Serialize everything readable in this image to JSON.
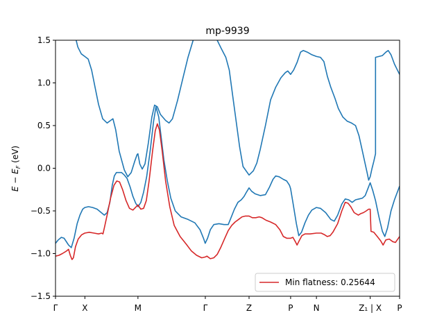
{
  "chart_data": {
    "type": "line",
    "title": "mp-9939",
    "ylabel": "E − E_F (eV)",
    "ylabel_main": "E − E",
    "ylabel_sub": "F",
    "ylabel_unit": " (eV)",
    "ylim": [
      -1.5,
      1.5
    ],
    "yticks": [
      -1.5,
      -1.0,
      -0.5,
      0.0,
      0.5,
      1.0,
      1.5
    ],
    "ytick_labels": [
      "−1.5",
      "−1.0",
      "−0.5",
      "0.0",
      "0.5",
      "1.0",
      "1.5"
    ],
    "xlim": [
      0,
      1
    ],
    "kpoints": [
      {
        "label": "Γ",
        "x": 0.0
      },
      {
        "label": "X",
        "x": 0.0854
      },
      {
        "label": "M",
        "x": 0.2396
      },
      {
        "label": "Γ",
        "x": 0.4354
      },
      {
        "label": "Z",
        "x": 0.5625
      },
      {
        "label": "P",
        "x": 0.6833
      },
      {
        "label": "N",
        "x": 0.7583
      },
      {
        "label": "Z₁ | X",
        "x": 0.9146
      },
      {
        "label": "P",
        "x": 1.0
      }
    ],
    "legend": {
      "label": "Min flatness: 0.25644",
      "position": "lower-right"
    },
    "colors": {
      "band": "#1f77b4",
      "flat_band": "#d62728"
    },
    "series": [
      {
        "color": "#1f77b4",
        "points": [
          [
            0.0,
            -0.88
          ],
          [
            0.008,
            -0.84
          ],
          [
            0.017,
            -0.81
          ],
          [
            0.025,
            -0.82
          ],
          [
            0.033,
            -0.87
          ],
          [
            0.038,
            -0.9
          ],
          [
            0.046,
            -0.93
          ],
          [
            0.054,
            -0.82
          ],
          [
            0.063,
            -0.65
          ],
          [
            0.071,
            -0.55
          ],
          [
            0.079,
            -0.48
          ],
          [
            0.085,
            -0.46
          ],
          [
            0.096,
            -0.45
          ],
          [
            0.108,
            -0.46
          ],
          [
            0.121,
            -0.48
          ],
          [
            0.133,
            -0.52
          ],
          [
            0.142,
            -0.55
          ],
          [
            0.15,
            -0.52
          ],
          [
            0.158,
            -0.4
          ],
          [
            0.165,
            -0.2
          ],
          [
            0.171,
            -0.09
          ],
          [
            0.177,
            -0.05
          ],
          [
            0.185,
            -0.05
          ],
          [
            0.192,
            -0.05
          ],
          [
            0.2,
            -0.08
          ],
          [
            0.208,
            -0.12
          ],
          [
            0.217,
            -0.22
          ],
          [
            0.225,
            -0.33
          ],
          [
            0.233,
            -0.41
          ],
          [
            0.24,
            -0.45
          ],
          [
            0.248,
            -0.4
          ],
          [
            0.256,
            -0.28
          ],
          [
            0.265,
            -0.1
          ],
          [
            0.275,
            0.2
          ],
          [
            0.285,
            0.55
          ],
          [
            0.292,
            0.72
          ],
          [
            0.3,
            0.6
          ],
          [
            0.306,
            0.4
          ],
          [
            0.315,
            0.1
          ],
          [
            0.325,
            -0.15
          ],
          [
            0.335,
            -0.35
          ],
          [
            0.348,
            -0.5
          ],
          [
            0.365,
            -0.57
          ],
          [
            0.385,
            -0.6
          ],
          [
            0.405,
            -0.64
          ],
          [
            0.42,
            -0.72
          ],
          [
            0.43,
            -0.82
          ],
          [
            0.435,
            -0.88
          ],
          [
            0.442,
            -0.82
          ],
          [
            0.45,
            -0.72
          ],
          [
            0.46,
            -0.66
          ],
          [
            0.475,
            -0.65
          ],
          [
            0.49,
            -0.66
          ],
          [
            0.502,
            -0.66
          ],
          [
            0.51,
            -0.58
          ],
          [
            0.52,
            -0.48
          ],
          [
            0.53,
            -0.4
          ],
          [
            0.54,
            -0.37
          ],
          [
            0.548,
            -0.33
          ],
          [
            0.555,
            -0.28
          ],
          [
            0.5625,
            -0.23
          ],
          [
            0.57,
            -0.27
          ],
          [
            0.58,
            -0.3
          ],
          [
            0.595,
            -0.32
          ],
          [
            0.61,
            -0.31
          ],
          [
            0.622,
            -0.22
          ],
          [
            0.632,
            -0.13
          ],
          [
            0.64,
            -0.09
          ],
          [
            0.65,
            -0.1
          ],
          [
            0.662,
            -0.13
          ],
          [
            0.672,
            -0.15
          ],
          [
            0.68,
            -0.2
          ],
          [
            0.6833,
            -0.24
          ],
          [
            0.69,
            -0.4
          ],
          [
            0.7,
            -0.65
          ],
          [
            0.707,
            -0.79
          ],
          [
            0.715,
            -0.75
          ],
          [
            0.725,
            -0.64
          ],
          [
            0.735,
            -0.55
          ],
          [
            0.745,
            -0.49
          ],
          [
            0.7583,
            -0.46
          ],
          [
            0.77,
            -0.47
          ],
          [
            0.785,
            -0.52
          ],
          [
            0.8,
            -0.6
          ],
          [
            0.81,
            -0.62
          ],
          [
            0.82,
            -0.55
          ],
          [
            0.832,
            -0.42
          ],
          [
            0.842,
            -0.36
          ],
          [
            0.852,
            -0.37
          ],
          [
            0.862,
            -0.4
          ],
          [
            0.872,
            -0.37
          ],
          [
            0.882,
            -0.36
          ],
          [
            0.892,
            -0.35
          ],
          [
            0.9,
            -0.32
          ],
          [
            0.9146,
            -0.17
          ],
          [
            0.922,
            -0.26
          ],
          [
            0.93,
            -0.38
          ],
          [
            0.94,
            -0.57
          ],
          [
            0.95,
            -0.74
          ],
          [
            0.957,
            -0.8
          ],
          [
            0.965,
            -0.7
          ],
          [
            0.975,
            -0.5
          ],
          [
            0.985,
            -0.37
          ],
          [
            1.0,
            -0.21
          ]
        ]
      },
      {
        "color": "#1f77b4",
        "points": [
          [
            0.06,
            1.5
          ],
          [
            0.065,
            1.42
          ],
          [
            0.075,
            1.34
          ],
          [
            0.085,
            1.31
          ],
          [
            0.095,
            1.28
          ],
          [
            0.105,
            1.15
          ],
          [
            0.115,
            0.95
          ],
          [
            0.125,
            0.75
          ],
          [
            0.137,
            0.58
          ],
          [
            0.15,
            0.53
          ],
          [
            0.16,
            0.56
          ],
          [
            0.167,
            0.58
          ],
          [
            0.175,
            0.45
          ],
          [
            0.185,
            0.2
          ],
          [
            0.2,
            -0.02
          ],
          [
            0.21,
            -0.1
          ],
          [
            0.22,
            -0.05
          ],
          [
            0.23,
            0.08
          ],
          [
            0.237,
            0.16
          ],
          [
            0.2396,
            0.17
          ],
          [
            0.245,
            0.05
          ],
          [
            0.252,
            -0.01
          ],
          [
            0.26,
            0.05
          ],
          [
            0.27,
            0.3
          ],
          [
            0.28,
            0.6
          ],
          [
            0.288,
            0.74
          ],
          [
            0.296,
            0.72
          ],
          [
            0.305,
            0.63
          ],
          [
            0.32,
            0.56
          ],
          [
            0.33,
            0.53
          ],
          [
            0.34,
            0.58
          ],
          [
            0.355,
            0.8
          ],
          [
            0.37,
            1.05
          ],
          [
            0.385,
            1.3
          ],
          [
            0.4,
            1.5
          ]
        ]
      },
      {
        "color": "#1f77b4",
        "points": [
          [
            0.47,
            1.5
          ],
          [
            0.482,
            1.4
          ],
          [
            0.495,
            1.3
          ],
          [
            0.505,
            1.15
          ],
          [
            0.515,
            0.85
          ],
          [
            0.525,
            0.55
          ],
          [
            0.535,
            0.25
          ],
          [
            0.545,
            0.02
          ],
          [
            0.5625,
            -0.08
          ],
          [
            0.575,
            -0.03
          ],
          [
            0.585,
            0.06
          ],
          [
            0.595,
            0.22
          ],
          [
            0.61,
            0.5
          ],
          [
            0.625,
            0.8
          ],
          [
            0.64,
            0.95
          ],
          [
            0.655,
            1.06
          ],
          [
            0.668,
            1.12
          ],
          [
            0.675,
            1.14
          ],
          [
            0.6833,
            1.1
          ],
          [
            0.692,
            1.15
          ],
          [
            0.702,
            1.24
          ],
          [
            0.712,
            1.36
          ],
          [
            0.72,
            1.38
          ],
          [
            0.732,
            1.36
          ],
          [
            0.745,
            1.33
          ],
          [
            0.7583,
            1.31
          ],
          [
            0.77,
            1.3
          ],
          [
            0.78,
            1.25
          ],
          [
            0.79,
            1.08
          ],
          [
            0.8,
            0.95
          ],
          [
            0.812,
            0.82
          ],
          [
            0.822,
            0.7
          ],
          [
            0.835,
            0.6
          ],
          [
            0.848,
            0.55
          ],
          [
            0.86,
            0.53
          ],
          [
            0.872,
            0.5
          ],
          [
            0.882,
            0.38
          ],
          [
            0.892,
            0.2
          ],
          [
            0.9,
            0.05
          ],
          [
            0.906,
            -0.06
          ],
          [
            0.91,
            -0.14
          ],
          [
            0.9146,
            -0.1
          ],
          [
            0.92,
            0.0
          ],
          [
            0.925,
            0.08
          ],
          [
            0.93,
            0.17
          ],
          [
            0.93,
            1.3
          ],
          [
            0.94,
            1.31
          ],
          [
            0.95,
            1.32
          ],
          [
            0.96,
            1.36
          ],
          [
            0.967,
            1.38
          ],
          [
            0.975,
            1.33
          ],
          [
            0.985,
            1.22
          ],
          [
            0.995,
            1.14
          ],
          [
            1.0,
            1.1
          ]
        ]
      },
      {
        "color": "#d62728",
        "points": [
          [
            0.0,
            -1.03
          ],
          [
            0.01,
            -1.02
          ],
          [
            0.02,
            -1.0
          ],
          [
            0.032,
            -0.97
          ],
          [
            0.038,
            -0.95
          ],
          [
            0.043,
            -1.02
          ],
          [
            0.048,
            -1.07
          ],
          [
            0.052,
            -1.05
          ],
          [
            0.058,
            -0.92
          ],
          [
            0.066,
            -0.83
          ],
          [
            0.076,
            -0.78
          ],
          [
            0.085,
            -0.76
          ],
          [
            0.098,
            -0.75
          ],
          [
            0.112,
            -0.76
          ],
          [
            0.125,
            -0.77
          ],
          [
            0.134,
            -0.76
          ],
          [
            0.138,
            -0.77
          ],
          [
            0.142,
            -0.7
          ],
          [
            0.15,
            -0.55
          ],
          [
            0.16,
            -0.35
          ],
          [
            0.17,
            -0.2
          ],
          [
            0.178,
            -0.15
          ],
          [
            0.186,
            -0.16
          ],
          [
            0.195,
            -0.25
          ],
          [
            0.205,
            -0.38
          ],
          [
            0.215,
            -0.47
          ],
          [
            0.225,
            -0.49
          ],
          [
            0.2396,
            -0.43
          ],
          [
            0.248,
            -0.48
          ],
          [
            0.256,
            -0.47
          ],
          [
            0.264,
            -0.38
          ],
          [
            0.272,
            -0.15
          ],
          [
            0.282,
            0.2
          ],
          [
            0.29,
            0.44
          ],
          [
            0.296,
            0.52
          ],
          [
            0.302,
            0.45
          ],
          [
            0.31,
            0.2
          ],
          [
            0.32,
            -0.15
          ],
          [
            0.332,
            -0.45
          ],
          [
            0.345,
            -0.67
          ],
          [
            0.362,
            -0.8
          ],
          [
            0.38,
            -0.89
          ],
          [
            0.395,
            -0.97
          ],
          [
            0.41,
            -1.02
          ],
          [
            0.425,
            -1.05
          ],
          [
            0.4354,
            -1.04
          ],
          [
            0.44,
            -1.03
          ],
          [
            0.45,
            -1.06
          ],
          [
            0.46,
            -1.05
          ],
          [
            0.47,
            -1.01
          ],
          [
            0.48,
            -0.93
          ],
          [
            0.492,
            -0.82
          ],
          [
            0.502,
            -0.73
          ],
          [
            0.512,
            -0.67
          ],
          [
            0.522,
            -0.63
          ],
          [
            0.532,
            -0.6
          ],
          [
            0.542,
            -0.57
          ],
          [
            0.552,
            -0.56
          ],
          [
            0.5625,
            -0.56
          ],
          [
            0.572,
            -0.58
          ],
          [
            0.582,
            -0.58
          ],
          [
            0.592,
            -0.57
          ],
          [
            0.6,
            -0.58
          ],
          [
            0.612,
            -0.61
          ],
          [
            0.625,
            -0.63
          ],
          [
            0.64,
            -0.66
          ],
          [
            0.652,
            -0.72
          ],
          [
            0.662,
            -0.8
          ],
          [
            0.672,
            -0.82
          ],
          [
            0.6833,
            -0.82
          ],
          [
            0.69,
            -0.81
          ],
          [
            0.697,
            -0.86
          ],
          [
            0.702,
            -0.9
          ],
          [
            0.708,
            -0.85
          ],
          [
            0.716,
            -0.79
          ],
          [
            0.725,
            -0.77
          ],
          [
            0.74,
            -0.77
          ],
          [
            0.7583,
            -0.76
          ],
          [
            0.772,
            -0.76
          ],
          [
            0.782,
            -0.78
          ],
          [
            0.79,
            -0.8
          ],
          [
            0.798,
            -0.79
          ],
          [
            0.806,
            -0.75
          ],
          [
            0.82,
            -0.65
          ],
          [
            0.832,
            -0.5
          ],
          [
            0.842,
            -0.4
          ],
          [
            0.85,
            -0.41
          ],
          [
            0.858,
            -0.45
          ],
          [
            0.868,
            -0.52
          ],
          [
            0.88,
            -0.55
          ],
          [
            0.888,
            -0.53
          ],
          [
            0.895,
            -0.52
          ],
          [
            0.903,
            -0.5
          ],
          [
            0.91,
            -0.48
          ],
          [
            0.9146,
            -0.48
          ],
          [
            0.917,
            -0.74
          ],
          [
            0.925,
            -0.75
          ],
          [
            0.935,
            -0.8
          ],
          [
            0.945,
            -0.85
          ],
          [
            0.952,
            -0.9
          ],
          [
            0.96,
            -0.84
          ],
          [
            0.97,
            -0.83
          ],
          [
            0.98,
            -0.86
          ],
          [
            0.988,
            -0.87
          ],
          [
            1.0,
            -0.8
          ]
        ]
      }
    ]
  }
}
